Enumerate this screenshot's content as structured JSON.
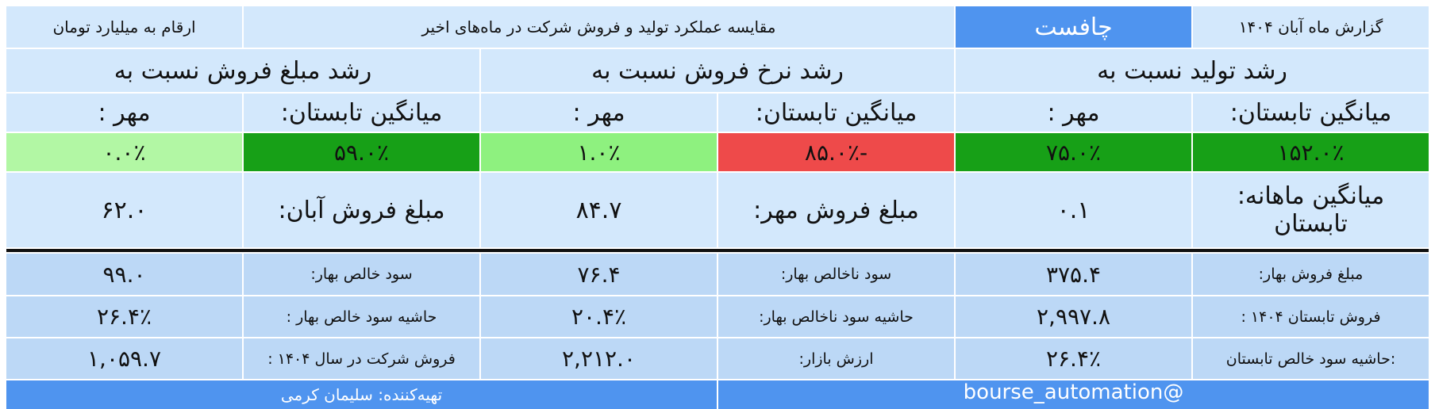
{
  "header": {
    "report": "گزارش ماه آبان ۱۴۰۴",
    "brand": "چافست",
    "title": "مقایسه عملکرد تولید و فروش شرکت در ماه‌های اخیر",
    "unit": "ارقام به میلیارد تومان"
  },
  "growth": [
    {
      "title": "رشد تولید نسبت به",
      "cells": [
        {
          "label": "میانگین تابستان:",
          "value": "۱۵۲.۰٪",
          "color": "#17a017"
        },
        {
          "label": "مهر :",
          "value": "۷۵.۰٪",
          "color": "#17a017"
        }
      ]
    },
    {
      "title": "رشد نرخ فروش نسبت به",
      "cells": [
        {
          "label": "میانگین تابستان:",
          "value": "-۸۵.۰٪",
          "color": "#ee4a4a"
        },
        {
          "label": "مهر :",
          "value": "۱.۰٪",
          "color": "#8ef17f"
        }
      ]
    },
    {
      "title": "رشد مبلغ فروش نسبت به",
      "cells": [
        {
          "label": "میانگین تابستان:",
          "value": "۵۹.۰٪",
          "color": "#17a017"
        },
        {
          "label": "مهر :",
          "value": "۰.۰٪",
          "color": "#b2f7a4"
        }
      ]
    }
  ],
  "monthly": [
    [
      "میانگین ماهانه: تابستان",
      "۰.۱"
    ],
    [
      "مبلغ فروش مهر:",
      "۸۴.۷"
    ],
    [
      "مبلغ فروش آبان:",
      "۶۲.۰"
    ]
  ],
  "table": {
    "rows": [
      [
        "مبلغ فروش بهار:",
        "۳۷۵.۴",
        "سود ناخالص بهار:",
        "۷۶.۴",
        "سود خالص بهار:",
        "۹۹.۰"
      ],
      [
        "فروش تابستان ۱۴۰۴ :",
        "۲,۹۹۷.۸",
        "حاشیه سود ناخالص بهار:",
        "۲۰.۴٪",
        "حاشیه سود خالص بهار :",
        "۲۶.۴٪"
      ],
      [
        ":حاشیه سود خالص تابستان",
        "۲۶.۴٪",
        "ارزش بازار:",
        "۲,۲۱۲.۰",
        "فروش شرکت در سال ۱۴۰۴ :",
        "۱,۰۵۹.۷"
      ]
    ]
  },
  "footer": {
    "channel": "@bourse_automation",
    "author": "تهیه‌کننده: سلیمان کرمی"
  }
}
